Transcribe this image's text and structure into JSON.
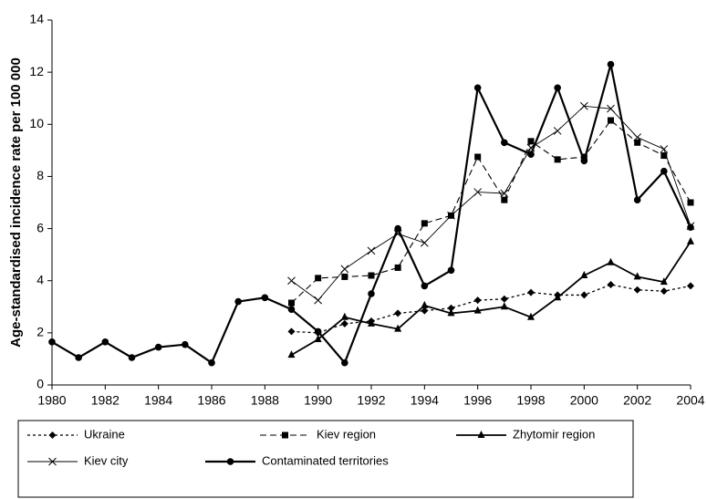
{
  "chart_data": {
    "type": "line",
    "ylabel": "Age-standardised incidence rate per 100 000",
    "x": [
      1980,
      1981,
      1982,
      1983,
      1984,
      1985,
      1986,
      1987,
      1988,
      1989,
      1990,
      1991,
      1992,
      1993,
      1994,
      1995,
      1996,
      1997,
      1998,
      1999,
      2000,
      2001,
      2002,
      2003,
      2004
    ],
    "xlim": [
      1980,
      2004
    ],
    "xticks": [
      1980,
      1982,
      1984,
      1986,
      1988,
      1990,
      1992,
      1994,
      1996,
      1998,
      2000,
      2002,
      2004
    ],
    "ylim": [
      0,
      14
    ],
    "yticks": [
      0,
      2,
      4,
      6,
      8,
      10,
      12,
      14
    ],
    "legend": "bottom",
    "series": [
      {
        "name": "Ukraine",
        "color": "#000000",
        "line_style": "dotted",
        "marker": "diamond",
        "values": [
          null,
          null,
          null,
          null,
          null,
          null,
          null,
          null,
          null,
          2.05,
          2.0,
          2.35,
          2.45,
          2.75,
          2.85,
          2.95,
          3.25,
          3.3,
          3.55,
          3.45,
          3.45,
          3.85,
          3.65,
          3.6,
          3.8
        ]
      },
      {
        "name": "Kiev region",
        "color": "#000000",
        "line_style": "dashed",
        "marker": "square",
        "values": [
          null,
          null,
          null,
          null,
          null,
          null,
          null,
          null,
          null,
          3.15,
          4.1,
          4.15,
          4.2,
          4.5,
          6.2,
          6.5,
          8.75,
          7.1,
          9.35,
          8.65,
          8.75,
          10.15,
          9.3,
          8.8,
          7.0
        ]
      },
      {
        "name": "Zhytomir region",
        "color": "#000000",
        "line_style": "solid",
        "marker": "triangle",
        "values": [
          null,
          null,
          null,
          null,
          null,
          null,
          null,
          null,
          null,
          1.15,
          1.75,
          2.6,
          2.35,
          2.15,
          3.05,
          2.75,
          2.85,
          3.0,
          2.6,
          3.35,
          4.2,
          4.7,
          4.15,
          3.95,
          5.5
        ]
      },
      {
        "name": "Kiev city",
        "color": "#000000",
        "line_style": "thin",
        "marker": "x",
        "values": [
          null,
          null,
          null,
          null,
          null,
          null,
          null,
          null,
          null,
          4.0,
          3.25,
          4.45,
          5.15,
          5.8,
          5.45,
          6.5,
          7.4,
          7.35,
          9.1,
          9.75,
          10.7,
          10.6,
          9.5,
          9.05,
          6.1
        ]
      },
      {
        "name": "Contaminated territories",
        "color": "#000000",
        "line_style": "thick",
        "marker": "circle",
        "values": [
          1.65,
          1.05,
          1.65,
          1.05,
          1.45,
          1.55,
          0.85,
          3.2,
          3.35,
          2.9,
          2.05,
          0.85,
          3.5,
          6.0,
          3.8,
          4.4,
          11.4,
          9.3,
          8.85,
          11.4,
          8.6,
          12.3,
          7.1,
          8.2,
          6.05
        ]
      }
    ]
  }
}
